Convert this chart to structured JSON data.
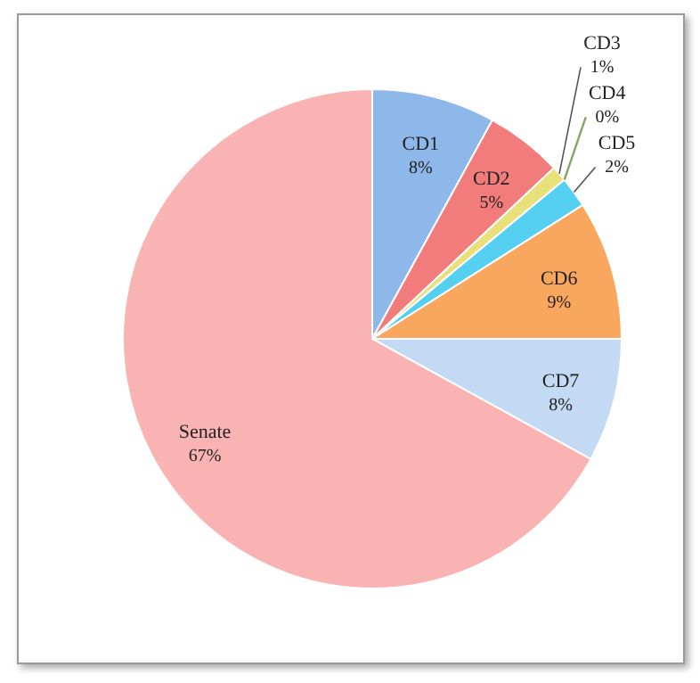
{
  "chart_data": {
    "type": "pie",
    "categories": [
      "CD1",
      "CD2",
      "CD3",
      "CD4",
      "CD5",
      "CD6",
      "CD7",
      "Senate"
    ],
    "values": [
      8,
      5,
      1,
      0,
      2,
      9,
      8,
      67
    ],
    "value_labels": [
      "8%",
      "5%",
      "1%",
      "0%",
      "2%",
      "9%",
      "8%",
      "67%"
    ],
    "colors": [
      "#8fb8ea",
      "#f27b7b",
      "#e9e07a",
      "#9fd07a",
      "#55d0f0",
      "#f9a65e",
      "#c4d9f4",
      "#f9b3b3"
    ]
  }
}
